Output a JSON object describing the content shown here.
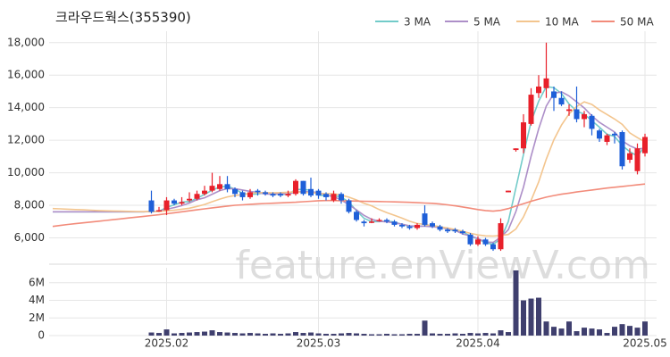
{
  "chart_data": {
    "type": "candlestick",
    "title": "크라우드웍스(355390)",
    "watermark": "feature.enViewV.com",
    "categories": [
      null,
      null,
      null,
      null,
      null,
      null,
      null,
      null,
      null,
      null,
      null,
      null,
      null,
      null,
      null,
      "2025.02",
      null,
      null,
      null,
      null,
      null,
      null,
      null,
      null,
      null,
      null,
      null,
      null,
      null,
      null,
      null,
      null,
      null,
      null,
      null,
      "2025.03",
      null,
      null,
      null,
      null,
      null,
      null,
      null,
      null,
      null,
      null,
      null,
      null,
      null,
      null,
      null,
      null,
      null,
      null,
      null,
      null,
      "2025.04",
      null,
      null,
      null,
      null,
      null,
      null,
      null,
      null,
      null,
      null,
      null,
      null,
      null,
      null,
      null,
      null,
      null,
      null,
      null,
      null,
      null,
      "2025.05"
    ],
    "open": [
      null,
      null,
      null,
      null,
      null,
      null,
      null,
      null,
      null,
      null,
      null,
      null,
      null,
      8300,
      7700,
      7700,
      8300,
      8100,
      8300,
      8400,
      8700,
      8900,
      9000,
      9300,
      9000,
      8800,
      8500,
      8900,
      8800,
      8700,
      8700,
      8600,
      8700,
      9500,
      9000,
      8900,
      8700,
      8300,
      8700,
      8300,
      7600,
      7000,
      7000,
      7100,
      7100,
      7000,
      6800,
      6700,
      6600,
      7500,
      6900,
      6700,
      6500,
      6500,
      6400,
      6200,
      5600,
      5900,
      5600,
      5300,
      8800,
      11400,
      11500,
      13000,
      14900,
      15200,
      15000,
      14600,
      13800,
      13900,
      13300,
      13500,
      12600,
      11900,
      12400,
      12500,
      10800,
      10100,
      11200
    ],
    "high": [
      null,
      null,
      null,
      null,
      null,
      null,
      null,
      null,
      null,
      null,
      null,
      null,
      null,
      8900,
      7900,
      8500,
      8400,
      8500,
      8800,
      8900,
      9200,
      10000,
      9800,
      9800,
      9100,
      8900,
      9000,
      9000,
      8900,
      8800,
      8800,
      8900,
      9600,
      9500,
      9700,
      9000,
      8800,
      8900,
      8800,
      8400,
      7700,
      7100,
      7200,
      7200,
      7200,
      7100,
      6900,
      6800,
      6900,
      8000,
      7000,
      6800,
      6600,
      6600,
      6500,
      6300,
      6100,
      6000,
      5700,
      7200,
      8900,
      11500,
      13600,
      15200,
      16000,
      18000,
      15300,
      15000,
      14200,
      15300,
      13800,
      13600,
      12700,
      12400,
      12500,
      12600,
      11500,
      11800,
      12400
    ],
    "low": [
      null,
      null,
      null,
      null,
      null,
      null,
      null,
      null,
      null,
      null,
      null,
      null,
      null,
      7500,
      7600,
      7400,
      8000,
      8000,
      8200,
      8300,
      8600,
      8800,
      8900,
      8800,
      8500,
      8300,
      8400,
      8600,
      8600,
      8500,
      8500,
      8500,
      8600,
      8600,
      8500,
      8400,
      8300,
      8200,
      8100,
      7500,
      7000,
      6700,
      6900,
      7000,
      6900,
      6700,
      6600,
      6500,
      6500,
      6700,
      6600,
      6400,
      6300,
      6300,
      6200,
      5500,
      5500,
      5500,
      5200,
      5200,
      8800,
      11300,
      11200,
      12900,
      14600,
      14600,
      13800,
      14100,
      13500,
      13100,
      12800,
      12300,
      11900,
      11700,
      11800,
      10200,
      10600,
      9900,
      11000
    ],
    "close": [
      null,
      null,
      null,
      null,
      null,
      null,
      null,
      null,
      null,
      null,
      null,
      null,
      null,
      7600,
      7700,
      8300,
      8100,
      8200,
      8400,
      8700,
      8900,
      9200,
      9300,
      9000,
      8700,
      8500,
      8800,
      8800,
      8700,
      8600,
      8600,
      8700,
      9500,
      8700,
      8600,
      8600,
      8500,
      8700,
      8300,
      7600,
      7100,
      6900,
      7000,
      7100,
      7000,
      6800,
      6700,
      6600,
      6800,
      6800,
      6700,
      6500,
      6400,
      6400,
      6300,
      5600,
      5900,
      5600,
      5300,
      6900,
      8900,
      11500,
      13100,
      14800,
      15300,
      15800,
      14600,
      14200,
      13900,
      13300,
      13600,
      12700,
      12100,
      12300,
      12300,
      10400,
      11200,
      11500,
      12200
    ],
    "up_color": "#e8202a",
    "down_color": "#1e5fd8",
    "ylim": [
      4600,
      18700
    ],
    "yticks": [
      {
        "value": 6000,
        "label": "6,000"
      },
      {
        "value": 8000,
        "label": "8,000"
      },
      {
        "value": 10000,
        "label": "10,000"
      },
      {
        "value": 12000,
        "label": "12,000"
      },
      {
        "value": 14000,
        "label": "14,000"
      },
      {
        "value": 16000,
        "label": "16,000"
      },
      {
        "value": 18000,
        "label": "18,000"
      }
    ],
    "grid": true,
    "series": [
      {
        "name": "3 MA",
        "color": "#72cbc9",
        "values": [
          7600,
          7600,
          7600,
          7600,
          7600,
          7600,
          7600,
          7600,
          7600,
          7600,
          7600,
          7600,
          7600,
          7630,
          7630,
          7870,
          8030,
          8200,
          8230,
          8430,
          8670,
          8930,
          9130,
          9170,
          9000,
          8730,
          8670,
          8700,
          8770,
          8700,
          8670,
          8670,
          8970,
          8970,
          8930,
          8630,
          8570,
          8600,
          8500,
          8200,
          7670,
          7200,
          7000,
          7000,
          7030,
          6970,
          6830,
          6700,
          6700,
          6730,
          6770,
          6670,
          6530,
          6430,
          6370,
          6100,
          5930,
          5700,
          5600,
          5930,
          7000,
          9070,
          11130,
          13130,
          14400,
          15300,
          15230,
          14870,
          14230,
          13800,
          13600,
          13200,
          12800,
          12370,
          12230,
          11670,
          11300,
          11030,
          11630
        ]
      },
      {
        "name": "5 MA",
        "color": "#ad8fc8",
        "values": [
          7600,
          7600,
          7600,
          7600,
          7600,
          7600,
          7600,
          7600,
          7600,
          7600,
          7600,
          7600,
          7600,
          7620,
          7640,
          7760,
          7860,
          7980,
          8140,
          8340,
          8460,
          8680,
          8900,
          9020,
          9020,
          8940,
          8860,
          8780,
          8700,
          8680,
          8720,
          8680,
          8820,
          8840,
          8820,
          8780,
          8620,
          8540,
          8320,
          8040,
          7720,
          7380,
          7140,
          7020,
          6980,
          6920,
          6840,
          6740,
          6720,
          6720,
          6680,
          6640,
          6560,
          6460,
          6240,
          6120,
          5960,
          5740,
          5720,
          6040,
          6500,
          7620,
          9120,
          11020,
          12700,
          14100,
          14880,
          14980,
          14720,
          14360,
          13980,
          13500,
          13100,
          12800,
          12500,
          11960,
          11660,
          11460,
          11520
        ]
      },
      {
        "name": "10 MA",
        "color": "#f3c58e",
        "values": [
          7800,
          7780,
          7760,
          7740,
          7720,
          7700,
          7680,
          7660,
          7650,
          7640,
          7630,
          7620,
          7610,
          7610,
          7620,
          7660,
          7700,
          7760,
          7820,
          7930,
          8050,
          8220,
          8380,
          8520,
          8600,
          8660,
          8730,
          8780,
          8780,
          8770,
          8780,
          8800,
          8830,
          8800,
          8770,
          8740,
          8710,
          8710,
          8620,
          8500,
          8330,
          8130,
          7970,
          7740,
          7550,
          7380,
          7210,
          7020,
          6880,
          6820,
          6750,
          6680,
          6610,
          6510,
          6400,
          6280,
          6180,
          6120,
          6110,
          6140,
          6210,
          6540,
          7290,
          8300,
          9440,
          10840,
          12030,
          12930,
          13620,
          14070,
          14360,
          14200,
          13860,
          13580,
          13300,
          12980,
          12450,
          12160,
          11900
        ]
      },
      {
        "name": "50 MA",
        "color": "#f28b7a",
        "values": [
          6700,
          6760,
          6820,
          6870,
          6920,
          6970,
          7020,
          7070,
          7120,
          7170,
          7220,
          7270,
          7320,
          7370,
          7420,
          7480,
          7540,
          7600,
          7660,
          7720,
          7780,
          7840,
          7900,
          7950,
          8000,
          8030,
          8060,
          8090,
          8110,
          8130,
          8150,
          8170,
          8190,
          8220,
          8250,
          8280,
          8290,
          8290,
          8280,
          8270,
          8260,
          8250,
          8240,
          8230,
          8220,
          8210,
          8200,
          8180,
          8160,
          8140,
          8120,
          8080,
          8030,
          7970,
          7900,
          7820,
          7740,
          7680,
          7640,
          7690,
          7800,
          7950,
          8100,
          8250,
          8380,
          8500,
          8600,
          8680,
          8750,
          8820,
          8880,
          8940,
          9000,
          9060,
          9110,
          9160,
          9210,
          9260,
          9310
        ]
      }
    ],
    "volume": {
      "color": "#3f3f6e",
      "values": [
        null,
        null,
        null,
        null,
        null,
        null,
        null,
        null,
        null,
        null,
        null,
        null,
        null,
        350000,
        300000,
        700000,
        250000,
        300000,
        350000,
        400000,
        450000,
        600000,
        400000,
        350000,
        300000,
        250000,
        300000,
        250000,
        200000,
        250000,
        200000,
        250000,
        400000,
        300000,
        350000,
        250000,
        200000,
        200000,
        250000,
        300000,
        250000,
        200000,
        150000,
        150000,
        200000,
        150000,
        150000,
        200000,
        200000,
        1700000,
        250000,
        200000,
        200000,
        250000,
        200000,
        300000,
        250000,
        300000,
        250000,
        600000,
        400000,
        7400000,
        4000000,
        4200000,
        4300000,
        1600000,
        1000000,
        800000,
        1600000,
        500000,
        900000,
        800000,
        700000,
        300000,
        1000000,
        1300000,
        1100000,
        900000,
        1600000
      ],
      "ylim": [
        0,
        7700000
      ],
      "yticks": [
        0,
        {
          "value": 2000000,
          "label": "2M"
        },
        {
          "value": 4000000,
          "label": "4M"
        },
        {
          "value": 6000000,
          "label": "6M"
        }
      ]
    }
  }
}
